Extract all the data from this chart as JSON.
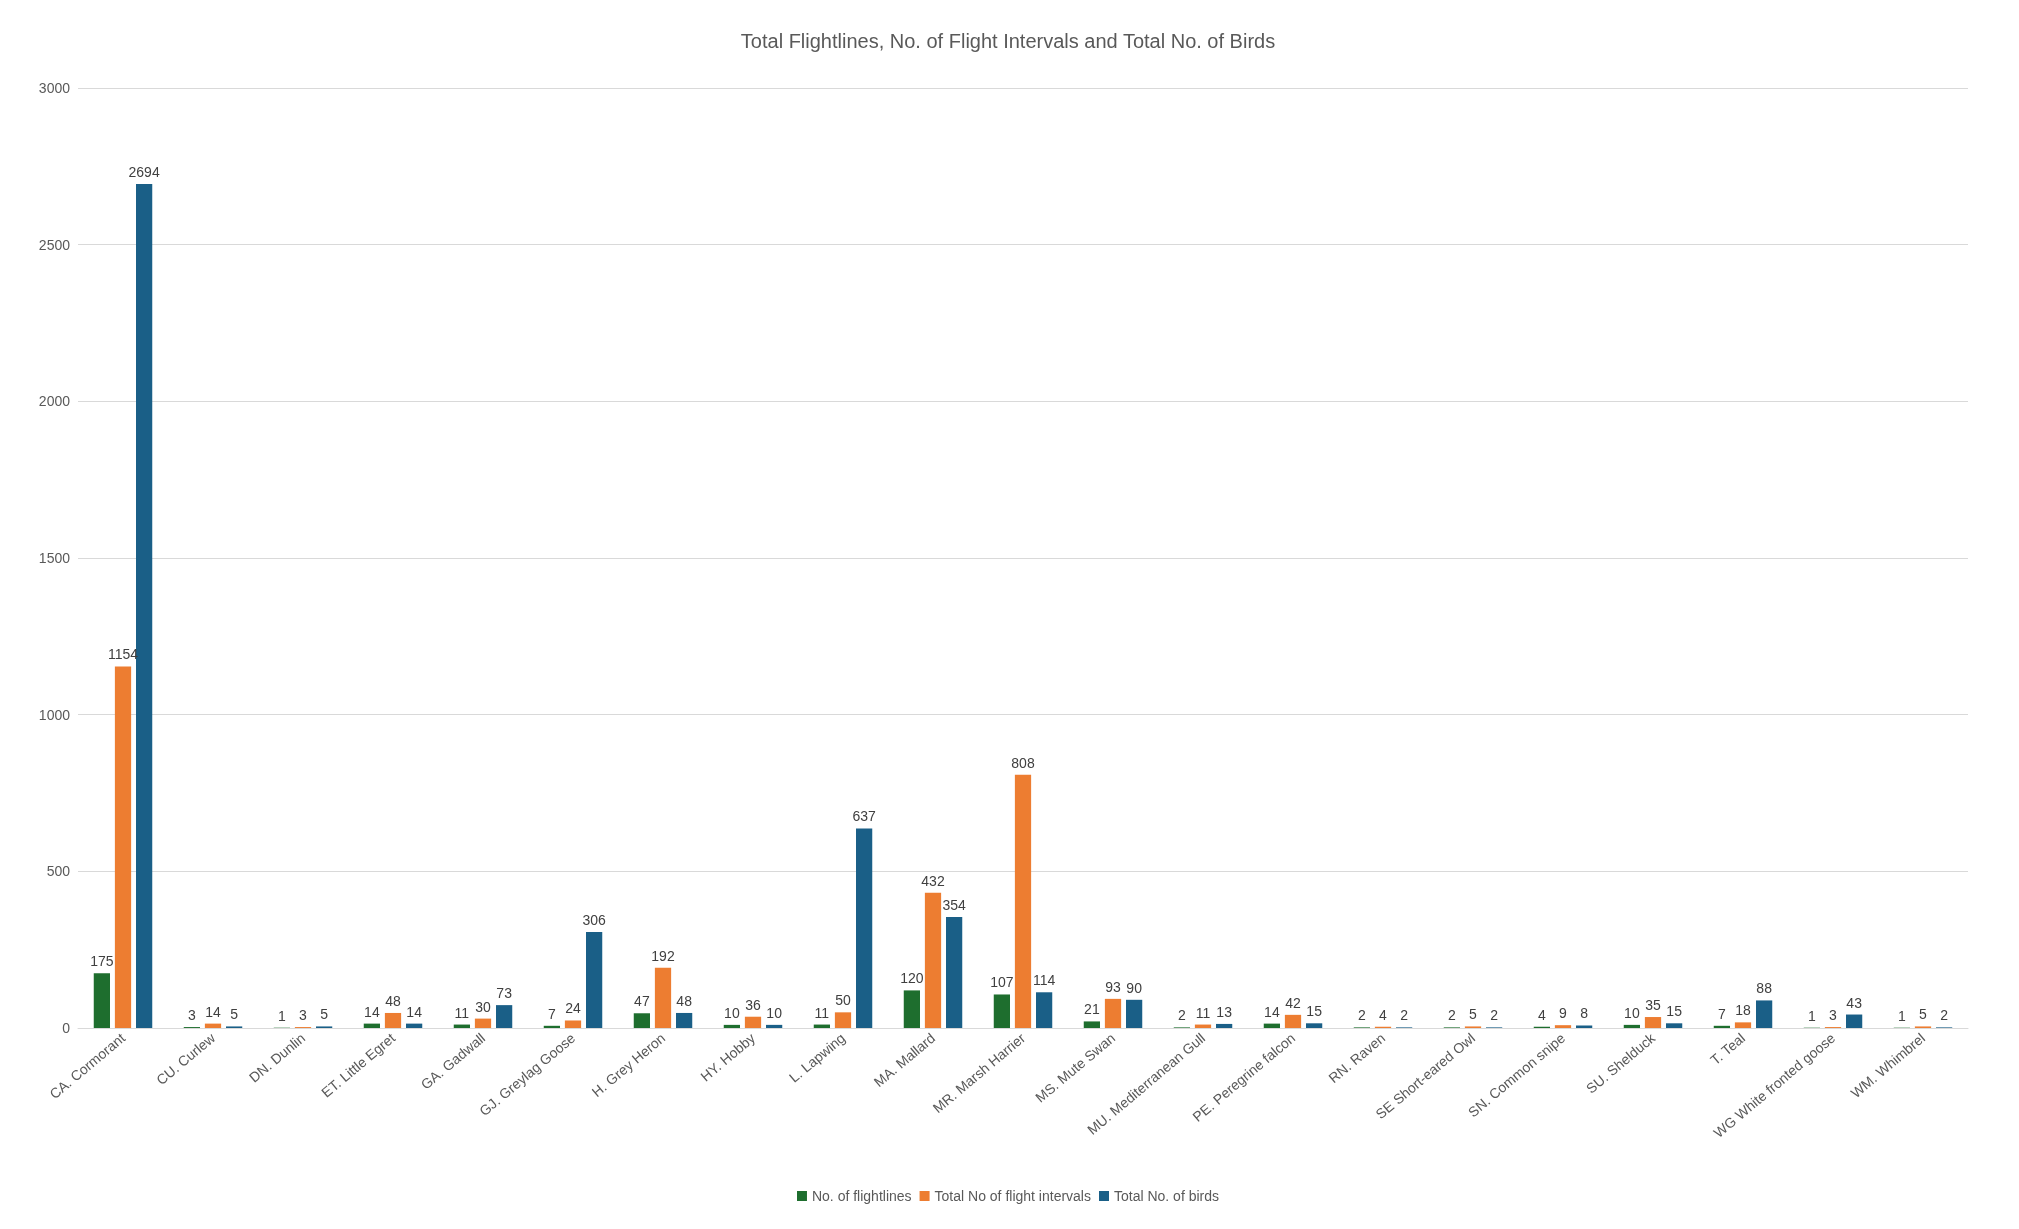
{
  "chart_data": {
    "type": "bar",
    "title": "Total Flightlines, No. of Flight Intervals and Total No. of Birds",
    "categories": [
      "CA. Cormorant",
      "CU. Curlew",
      "DN. Dunlin",
      "ET. Little Egret",
      "GA. Gadwall",
      "GJ. Greylag Goose",
      "H. Grey Heron",
      "HY. Hobby",
      "L. Lapwing",
      "MA. Mallard",
      "MR. Marsh Harrier",
      "MS. Mute Swan",
      "MU. Mediterranean Gull",
      "PE. Peregrine falcon",
      "RN. Raven",
      "SE Short-eared Owl",
      "SN. Common snipe",
      "SU. Shelduck",
      "T. Teal",
      "WG White fronted goose",
      "WM. Whimbrel"
    ],
    "series": [
      {
        "name": "No. of flightlines",
        "color": "#1e6e2e",
        "values": [
          175,
          3,
          1,
          14,
          11,
          7,
          47,
          10,
          11,
          120,
          107,
          21,
          2,
          14,
          2,
          2,
          4,
          10,
          7,
          1,
          1
        ]
      },
      {
        "name": "Total No of flight intervals",
        "color": "#ed7d31",
        "values": [
          1154,
          14,
          3,
          48,
          30,
          24,
          192,
          36,
          50,
          432,
          808,
          93,
          11,
          42,
          4,
          5,
          9,
          35,
          18,
          3,
          5
        ]
      },
      {
        "name": "Total No. of birds",
        "color": "#1a5f87",
        "values": [
          2694,
          5,
          5,
          14,
          73,
          306,
          48,
          10,
          637,
          354,
          114,
          90,
          13,
          15,
          2,
          2,
          8,
          15,
          88,
          43,
          2
        ]
      }
    ],
    "ylim": [
      0,
      3000
    ],
    "yticks": [
      0,
      500,
      1000,
      1500,
      2000,
      2500,
      3000
    ],
    "grid": "y",
    "legend": "bottom",
    "data_labels": true
  }
}
